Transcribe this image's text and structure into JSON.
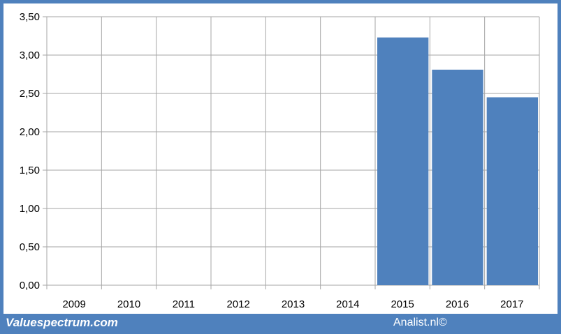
{
  "chart_data": {
    "type": "bar",
    "categories": [
      "2009",
      "2010",
      "2011",
      "2012",
      "2013",
      "2014",
      "2015",
      "2016",
      "2017"
    ],
    "values": [
      null,
      null,
      null,
      null,
      null,
      null,
      3.23,
      2.81,
      2.45
    ],
    "ylim": [
      0,
      3.5
    ],
    "yticks": [
      "0,00",
      "0,50",
      "1,00",
      "1,50",
      "2,00",
      "2,50",
      "3,00",
      "3,50"
    ],
    "grid": true,
    "bar_color": "#4f81bd"
  },
  "footer": {
    "left": "Valuespectrum.com",
    "right": "Analist.nl©"
  },
  "colors": {
    "frame": "#4f81bd",
    "grid": "#a6a6a6"
  }
}
